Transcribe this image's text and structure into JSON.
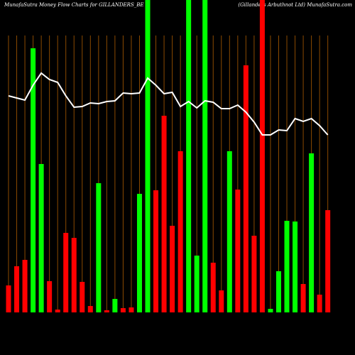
{
  "chart_data": {
    "type": "bar",
    "title": "MunafaSutra  Money Flow  Charts for GILLANDERS_BE",
    "subtitle": "(Gillanders Arbuthnot Ltd) MunafaSutra.com",
    "categories": [
      null,
      null,
      null,
      null,
      null,
      null,
      null,
      null,
      null,
      null,
      null,
      null,
      null,
      null,
      null,
      null,
      null,
      null,
      null,
      null,
      null,
      null,
      null,
      null,
      null,
      null,
      null,
      null,
      null,
      null,
      null,
      null,
      null,
      null,
      null,
      null,
      null,
      null,
      null,
      null
    ],
    "values": [
      38,
      65,
      74,
      372,
      209,
      44,
      4,
      112,
      105,
      43,
      9,
      182,
      3,
      19,
      6,
      7,
      167,
      440,
      172,
      277,
      122,
      227,
      440,
      80,
      440,
      70,
      31,
      227,
      173,
      348,
      108,
      440,
      5,
      58,
      129,
      128,
      40,
      224,
      25,
      144
    ],
    "colors": [
      "#ff0000",
      "#ff0000",
      "#ff0000",
      "#00ff00",
      "#00ff00",
      "#ff0000",
      "#ff0000",
      "#ff0000",
      "#ff0000",
      "#ff0000",
      "#ff0000",
      "#00ff00",
      "#ff0000",
      "#00ff00",
      "#ff0000",
      "#ff0000",
      "#00ff00",
      "#00ff00",
      "#ff0000",
      "#ff0000",
      "#ff0000",
      "#ff0000",
      "#00ff00",
      "#00ff00",
      "#00ff00",
      "#ff0000",
      "#ff0000",
      "#00ff00",
      "#ff0000",
      "#ff0000",
      "#ff0000",
      "#ff0000",
      "#00ff00",
      "#00ff00",
      "#00ff00",
      "#00ff00",
      "#ff0000",
      "#00ff00",
      "#ff0000",
      "#ff0000"
    ],
    "line_values": [
      305,
      302,
      299,
      320,
      337,
      328,
      324,
      305,
      289,
      290,
      295,
      294,
      297,
      298,
      309,
      308,
      309,
      330,
      320,
      308,
      310,
      290,
      297,
      288,
      298,
      296,
      287,
      287,
      292,
      282,
      268,
      250,
      250,
      257,
      256,
      273,
      269,
      273,
      263,
      250
    ],
    "line_color": "#ffffff",
    "ylim": [
      0,
      440
    ],
    "grid": true,
    "grid_color": "#8b4a00"
  }
}
